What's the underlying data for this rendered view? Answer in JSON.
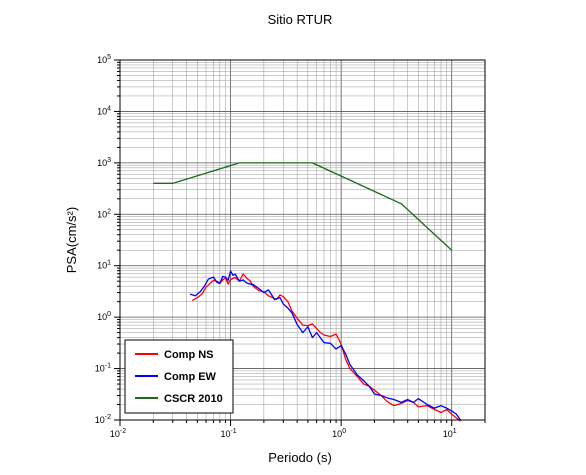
{
  "chart_data": {
    "type": "line",
    "title": "Sitio RTUR",
    "xlabel": "Periodo (s)",
    "ylabel": "PSA(cm/s²)",
    "x_scale": "log",
    "y_scale": "log",
    "xlim": [
      0.01,
      20
    ],
    "ylim": [
      0.01,
      100000
    ],
    "x_ticks": [
      {
        "value": 0.01,
        "base": "10",
        "exp": "-2"
      },
      {
        "value": 0.1,
        "base": "10",
        "exp": "-1"
      },
      {
        "value": 1,
        "base": "10",
        "exp": "0"
      },
      {
        "value": 10,
        "base": "10",
        "exp": "1"
      }
    ],
    "y_ticks": [
      {
        "value": 0.01,
        "base": "10",
        "exp": "-2"
      },
      {
        "value": 0.1,
        "base": "10",
        "exp": "-1"
      },
      {
        "value": 1,
        "base": "10",
        "exp": "0"
      },
      {
        "value": 10,
        "base": "10",
        "exp": "1"
      },
      {
        "value": 100,
        "base": "10",
        "exp": "2"
      },
      {
        "value": 1000,
        "base": "10",
        "exp": "3"
      },
      {
        "value": 10000,
        "base": "10",
        "exp": "4"
      },
      {
        "value": 100000,
        "base": "10",
        "exp": "5"
      }
    ],
    "grid": true,
    "legend_position": "bottom-left",
    "series": [
      {
        "name": "Comp NS",
        "color": "#ff0000",
        "x": [
          0.045,
          0.05,
          0.055,
          0.06,
          0.065,
          0.07,
          0.075,
          0.08,
          0.085,
          0.09,
          0.095,
          0.1,
          0.11,
          0.12,
          0.13,
          0.14,
          0.15,
          0.16,
          0.17,
          0.18,
          0.2,
          0.22,
          0.24,
          0.26,
          0.28,
          0.3,
          0.33,
          0.36,
          0.4,
          0.45,
          0.5,
          0.55,
          0.6,
          0.65,
          0.7,
          0.8,
          0.9,
          1.0,
          1.1,
          1.2,
          1.4,
          1.6,
          1.8,
          2.0,
          2.3,
          2.6,
          3.0,
          3.5,
          4.0,
          4.5,
          5.0,
          6.0,
          7.0,
          8.0,
          9.0,
          10.0,
          11.0,
          12.0
        ],
        "y": [
          2.1,
          2.4,
          2.8,
          3.8,
          4.5,
          5.2,
          5.0,
          4.6,
          5.3,
          5.8,
          4.4,
          5.4,
          5.9,
          5.0,
          6.9,
          5.7,
          5.1,
          4.0,
          3.6,
          3.3,
          3.1,
          2.6,
          2.4,
          2.2,
          2.7,
          2.5,
          2.0,
          1.3,
          0.95,
          0.7,
          0.68,
          0.74,
          0.6,
          0.5,
          0.45,
          0.42,
          0.47,
          0.3,
          0.15,
          0.1,
          0.07,
          0.05,
          0.045,
          0.038,
          0.03,
          0.023,
          0.019,
          0.021,
          0.024,
          0.022,
          0.018,
          0.019,
          0.016,
          0.014,
          0.016,
          0.013,
          0.011,
          0.0095
        ]
      },
      {
        "name": "Comp EW",
        "color": "#0000ff",
        "x": [
          0.043,
          0.048,
          0.053,
          0.058,
          0.063,
          0.07,
          0.075,
          0.08,
          0.085,
          0.09,
          0.095,
          0.1,
          0.105,
          0.11,
          0.12,
          0.13,
          0.14,
          0.15,
          0.16,
          0.18,
          0.2,
          0.22,
          0.25,
          0.28,
          0.3,
          0.33,
          0.36,
          0.4,
          0.45,
          0.5,
          0.55,
          0.6,
          0.7,
          0.8,
          0.9,
          1.0,
          1.1,
          1.2,
          1.4,
          1.6,
          1.8,
          2.0,
          2.3,
          2.6,
          3.0,
          3.5,
          4.0,
          4.5,
          5.0,
          6.0,
          7.0,
          8.0,
          9.0,
          10.0,
          11.0,
          12.0
        ],
        "y": [
          2.8,
          2.6,
          3.1,
          4.0,
          5.5,
          6.0,
          4.8,
          4.5,
          6.2,
          6.0,
          5.2,
          7.9,
          6.5,
          6.9,
          5.0,
          5.3,
          4.6,
          4.4,
          4.3,
          3.6,
          3.0,
          3.4,
          2.2,
          2.4,
          1.8,
          1.5,
          1.2,
          0.72,
          0.5,
          0.65,
          0.4,
          0.5,
          0.32,
          0.31,
          0.24,
          0.28,
          0.19,
          0.12,
          0.075,
          0.058,
          0.045,
          0.032,
          0.03,
          0.027,
          0.025,
          0.022,
          0.025,
          0.022,
          0.026,
          0.02,
          0.017,
          0.019,
          0.017,
          0.015,
          0.013,
          0.01
        ]
      },
      {
        "name": "CSCR 2010",
        "color": "#1a6b1a",
        "x": [
          0.02,
          0.03,
          0.12,
          0.55,
          3.5,
          10.0
        ],
        "y": [
          400,
          400,
          1000,
          1000,
          160,
          20
        ]
      }
    ]
  }
}
